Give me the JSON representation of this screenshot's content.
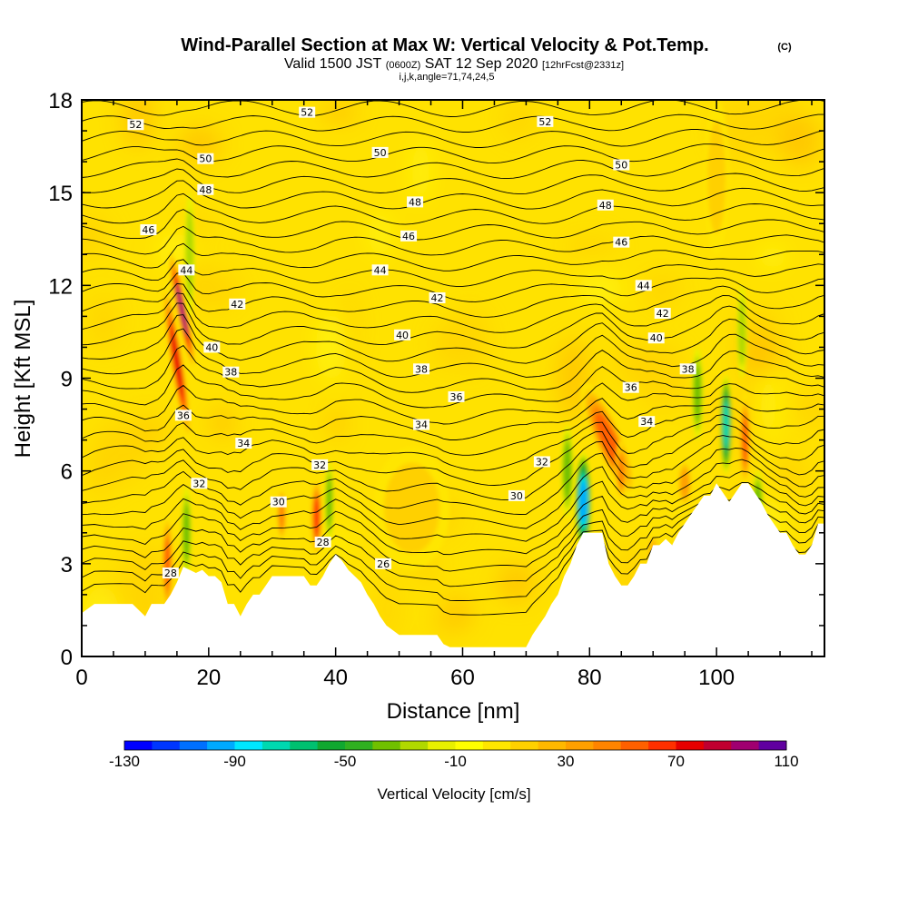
{
  "chart_data": {
    "type": "heatmap",
    "title": "Wind-Parallel Section at Max W: Vertical Velocity & Pot.Temp.",
    "title_mark": "(C)",
    "subtitle": {
      "valid": "Valid 1500 JST",
      "utc": "(0600Z)",
      "date": "SAT 12 Sep 2020",
      "forecast": "[12hrFcst@2331z]"
    },
    "subtitle2": "i,j,k,angle=71,74,24,5",
    "xlabel": "Distance [nm]",
    "ylabel": "Height [Kft MSL]",
    "xlim": [
      0,
      117
    ],
    "ylim": [
      0,
      18
    ],
    "x_ticks": [
      0,
      20,
      40,
      60,
      80,
      100
    ],
    "x_tick_labels": [
      "0",
      "20",
      "40",
      "60",
      "80",
      "100"
    ],
    "y_ticks": [
      0,
      3,
      6,
      9,
      12,
      15,
      18
    ],
    "y_tick_labels": [
      "0",
      "3",
      "6",
      "9",
      "12",
      "15",
      "18"
    ],
    "grid": false,
    "colorbar": {
      "label": "Vertical Velocity [cm/s]",
      "range": [
        -130,
        110
      ],
      "tick_values": [
        -130,
        -90,
        -50,
        -10,
        30,
        70,
        110
      ],
      "tick_labels": [
        "-130",
        "-90",
        "-50",
        "-10",
        "30",
        "70",
        "110"
      ],
      "colors": [
        "#0000ff",
        "#0036ff",
        "#0070ff",
        "#00aaff",
        "#00e6ff",
        "#00d8b0",
        "#00c070",
        "#10a830",
        "#30b020",
        "#70c000",
        "#b0d800",
        "#e8f000",
        "#ffff00",
        "#ffe600",
        "#ffd000",
        "#ffb800",
        "#ffa000",
        "#ff8400",
        "#ff6000",
        "#ff3000",
        "#e60000",
        "#c00030",
        "#a00070",
        "#6000a0"
      ]
    },
    "terrain": [
      [
        0,
        1.4
      ],
      [
        2,
        1.7
      ],
      [
        4,
        1.7
      ],
      [
        6,
        1.7
      ],
      [
        8,
        1.7
      ],
      [
        10,
        1.3
      ],
      [
        11,
        1.7
      ],
      [
        12,
        1.7
      ],
      [
        13,
        1.7
      ],
      [
        14,
        2.0
      ],
      [
        15,
        2.4
      ],
      [
        16,
        2.9
      ],
      [
        17,
        2.8
      ],
      [
        18,
        2.7
      ],
      [
        19,
        2.8
      ],
      [
        20,
        2.6
      ],
      [
        21,
        2.6
      ],
      [
        22,
        2.4
      ],
      [
        23,
        1.7
      ],
      [
        24,
        1.7
      ],
      [
        25,
        1.3
      ],
      [
        26,
        1.7
      ],
      [
        27,
        2.0
      ],
      [
        28,
        2.0
      ],
      [
        29,
        2.3
      ],
      [
        30,
        2.6
      ],
      [
        31,
        2.6
      ],
      [
        32,
        2.6
      ],
      [
        33,
        2.6
      ],
      [
        34,
        2.6
      ],
      [
        35,
        2.6
      ],
      [
        36,
        2.3
      ],
      [
        37,
        2.3
      ],
      [
        38,
        2.6
      ],
      [
        39,
        3.0
      ],
      [
        40,
        3.3
      ],
      [
        41,
        3.1
      ],
      [
        42,
        2.8
      ],
      [
        43,
        2.6
      ],
      [
        44,
        2.4
      ],
      [
        45,
        2.0
      ],
      [
        46,
        1.7
      ],
      [
        47,
        1.3
      ],
      [
        48,
        1.0
      ],
      [
        50,
        0.7
      ],
      [
        52,
        0.7
      ],
      [
        54,
        0.7
      ],
      [
        56,
        0.7
      ],
      [
        57,
        0.4
      ],
      [
        58,
        0.3
      ],
      [
        60,
        0.3
      ],
      [
        62,
        0.3
      ],
      [
        64,
        0.3
      ],
      [
        66,
        0.3
      ],
      [
        68,
        0.3
      ],
      [
        70,
        0.3
      ],
      [
        71,
        0.7
      ],
      [
        72,
        1.0
      ],
      [
        73,
        1.3
      ],
      [
        74,
        1.7
      ],
      [
        75,
        2.0
      ],
      [
        76,
        2.6
      ],
      [
        77,
        3.0
      ],
      [
        78,
        3.6
      ],
      [
        79,
        4.0
      ],
      [
        80,
        4.0
      ],
      [
        81,
        4.0
      ],
      [
        82,
        4.0
      ],
      [
        83,
        3.0
      ],
      [
        84,
        2.6
      ],
      [
        85,
        2.3
      ],
      [
        86,
        2.3
      ],
      [
        87,
        2.6
      ],
      [
        88,
        3.0
      ],
      [
        89,
        3.0
      ],
      [
        90,
        3.6
      ],
      [
        91,
        3.6
      ],
      [
        92,
        3.8
      ],
      [
        93,
        3.6
      ],
      [
        94,
        4.0
      ],
      [
        95,
        4.3
      ],
      [
        96,
        4.6
      ],
      [
        97,
        4.9
      ],
      [
        98,
        5.2
      ],
      [
        99,
        5.2
      ],
      [
        100,
        5.6
      ],
      [
        101,
        5.3
      ],
      [
        102,
        5.0
      ],
      [
        103,
        5.3
      ],
      [
        104,
        5.6
      ],
      [
        105,
        5.6
      ],
      [
        106,
        5.3
      ],
      [
        107,
        5.0
      ],
      [
        108,
        4.6
      ],
      [
        109,
        4.3
      ],
      [
        110,
        4.0
      ],
      [
        111,
        4.0
      ],
      [
        112,
        3.6
      ],
      [
        113,
        3.3
      ],
      [
        114,
        3.3
      ],
      [
        115,
        3.6
      ],
      [
        116,
        4.3
      ],
      [
        117,
        4.3
      ]
    ],
    "updrafts": [
      {
        "x": 15.0,
        "y": 9.5,
        "w": 1.0,
        "h": 2.6,
        "value": 70,
        "tilt": -0.16
      },
      {
        "x": 15.8,
        "y": 11.2,
        "w": 0.8,
        "h": 2.0,
        "value": 90,
        "tilt": -0.2
      },
      {
        "x": 13.5,
        "y": 3.0,
        "w": 0.9,
        "h": 1.6,
        "value": 50,
        "tilt": 0
      },
      {
        "x": 37.0,
        "y": 4.5,
        "w": 0.9,
        "h": 1.3,
        "value": 60,
        "tilt": 0
      },
      {
        "x": 31.5,
        "y": 4.6,
        "w": 0.8,
        "h": 0.9,
        "value": 40,
        "tilt": 0
      },
      {
        "x": 83.0,
        "y": 7.0,
        "w": 2.3,
        "h": 2.0,
        "value": 55,
        "tilt": -0.4
      },
      {
        "x": 85.0,
        "y": 6.0,
        "w": 1.0,
        "h": 1.0,
        "value": 40,
        "tilt": 0
      },
      {
        "x": 104.5,
        "y": 7.0,
        "w": 0.9,
        "h": 1.5,
        "value": 50,
        "tilt": 0
      },
      {
        "x": 95.0,
        "y": 5.6,
        "w": 1.2,
        "h": 0.8,
        "value": 35,
        "tilt": 0
      },
      {
        "x": 90.0,
        "y": 3.4,
        "w": 1.0,
        "h": 0.6,
        "value": 25,
        "tilt": 0
      },
      {
        "x": 52.0,
        "y": 4.8,
        "w": 6.0,
        "h": 2.0,
        "value": 10,
        "tilt": 0
      },
      {
        "x": 100.0,
        "y": 15.5,
        "w": 2.0,
        "h": 2.5,
        "value": 15,
        "tilt": 0
      }
    ],
    "downdrafts": [
      {
        "x": 17.0,
        "y": 13.0,
        "w": 0.8,
        "h": 2.0,
        "value": -35
      },
      {
        "x": 16.5,
        "y": 4.0,
        "w": 0.8,
        "h": 1.5,
        "value": -40
      },
      {
        "x": 39.0,
        "y": 5.0,
        "w": 0.7,
        "h": 1.3,
        "value": -45
      },
      {
        "x": 79.0,
        "y": 5.0,
        "w": 1.3,
        "h": 1.6,
        "value": -100
      },
      {
        "x": 76.5,
        "y": 6.0,
        "w": 1.0,
        "h": 1.5,
        "value": -40
      },
      {
        "x": 101.5,
        "y": 7.5,
        "w": 0.9,
        "h": 1.6,
        "value": -80
      },
      {
        "x": 97.0,
        "y": 8.5,
        "w": 0.9,
        "h": 1.5,
        "value": -40
      },
      {
        "x": 106.5,
        "y": 5.0,
        "w": 0.9,
        "h": 1.0,
        "value": -45
      },
      {
        "x": 104.0,
        "y": 10.5,
        "w": 0.8,
        "h": 1.5,
        "value": -30
      }
    ],
    "isentrope_labels": [
      {
        "text": "52",
        "x": 8.5,
        "y": 17.2
      },
      {
        "text": "52",
        "x": 35.5,
        "y": 17.6
      },
      {
        "text": "52",
        "x": 73.0,
        "y": 17.3
      },
      {
        "text": "50",
        "x": 19.5,
        "y": 16.1
      },
      {
        "text": "50",
        "x": 47.0,
        "y": 16.3
      },
      {
        "text": "50",
        "x": 85.0,
        "y": 15.9
      },
      {
        "text": "48",
        "x": 19.5,
        "y": 15.1
      },
      {
        "text": "48",
        "x": 52.5,
        "y": 14.7
      },
      {
        "text": "48",
        "x": 82.5,
        "y": 14.6
      },
      {
        "text": "46",
        "x": 10.5,
        "y": 13.8
      },
      {
        "text": "46",
        "x": 51.5,
        "y": 13.6
      },
      {
        "text": "46",
        "x": 85.0,
        "y": 13.4
      },
      {
        "text": "44",
        "x": 16.5,
        "y": 12.5
      },
      {
        "text": "44",
        "x": 47.0,
        "y": 12.5
      },
      {
        "text": "44",
        "x": 88.5,
        "y": 12.0
      },
      {
        "text": "42",
        "x": 24.5,
        "y": 11.4
      },
      {
        "text": "42",
        "x": 56.0,
        "y": 11.6
      },
      {
        "text": "42",
        "x": 91.5,
        "y": 11.1
      },
      {
        "text": "40",
        "x": 20.5,
        "y": 10.0
      },
      {
        "text": "40",
        "x": 50.5,
        "y": 10.4
      },
      {
        "text": "40",
        "x": 90.5,
        "y": 10.3
      },
      {
        "text": "38",
        "x": 23.5,
        "y": 9.2
      },
      {
        "text": "38",
        "x": 53.5,
        "y": 9.3
      },
      {
        "text": "38",
        "x": 95.5,
        "y": 9.3
      },
      {
        "text": "36",
        "x": 16.0,
        "y": 7.8
      },
      {
        "text": "36",
        "x": 59.0,
        "y": 8.4
      },
      {
        "text": "36",
        "x": 86.5,
        "y": 8.7
      },
      {
        "text": "34",
        "x": 25.5,
        "y": 6.9
      },
      {
        "text": "34",
        "x": 53.5,
        "y": 7.5
      },
      {
        "text": "34",
        "x": 89.0,
        "y": 7.6
      },
      {
        "text": "32",
        "x": 18.5,
        "y": 5.6
      },
      {
        "text": "32",
        "x": 37.5,
        "y": 6.2
      },
      {
        "text": "32",
        "x": 72.5,
        "y": 6.3
      },
      {
        "text": "30",
        "x": 31.0,
        "y": 5.0
      },
      {
        "text": "30",
        "x": 68.5,
        "y": 5.2
      },
      {
        "text": "28",
        "x": 14.0,
        "y": 2.7
      },
      {
        "text": "28",
        "x": 38.0,
        "y": 3.7
      },
      {
        "text": "26",
        "x": 47.5,
        "y": 3.0
      }
    ]
  }
}
